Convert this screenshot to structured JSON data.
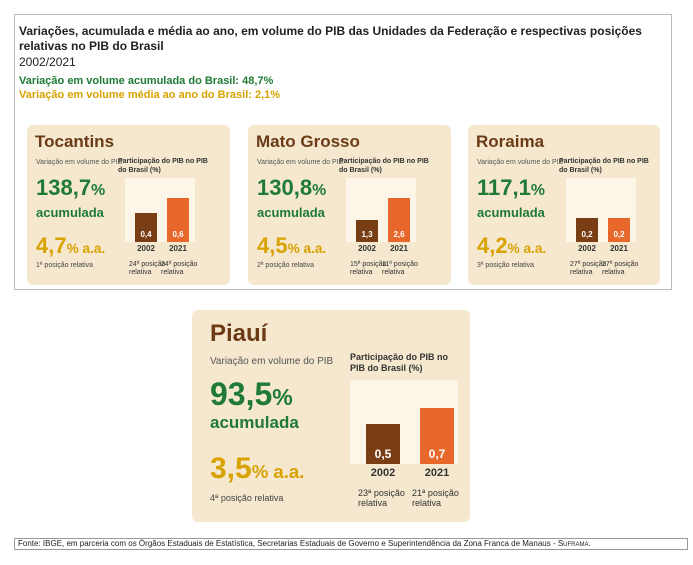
{
  "header": {
    "title": "Variações, acumulada e média ao ano, em volume do PIB das Unidades da Federação e respectivas posições relativas no PIB do Brasil",
    "period": "2002/2021",
    "brasil_accumulated": "Variação em volume acumulada do Brasil: 48,7%",
    "brasil_average": "Variação em volume média ao ano do Brasil: 2,1%"
  },
  "labels": {
    "variation": "Variação em volume do PIB",
    "participation": "Participação do PIB no PIB do Brasil (%)",
    "accumulated": "acumulada",
    "pct": "%",
    "per_year": "% a.a."
  },
  "colors": {
    "green": "#1e7a35",
    "yellow": "#d8a200",
    "bar_2002": "#7a3e14",
    "bar_2021": "#e8672b",
    "card_bg": "#f5e8cf"
  },
  "chart_data": [
    {
      "type": "bar",
      "title": "Tocantins",
      "categories": [
        "2002",
        "2021"
      ],
      "values": [
        0.4,
        0.6
      ],
      "value_labels": [
        "0,4",
        "0,6"
      ],
      "accumulated": "138,7",
      "average": "4,7",
      "rank": "1ª posição relativa",
      "participation_ranks": [
        "24ª posição relativa",
        "24ª posição relativa"
      ]
    },
    {
      "type": "bar",
      "title": "Mato Grosso",
      "categories": [
        "2002",
        "2021"
      ],
      "values": [
        1.3,
        2.6
      ],
      "value_labels": [
        "1,3",
        "2,6"
      ],
      "accumulated": "130,8",
      "average": "4,5",
      "rank": "2ª posição relativa",
      "participation_ranks": [
        "15ª posição relativa",
        "11ª posição relativa"
      ]
    },
    {
      "type": "bar",
      "title": "Roraima",
      "categories": [
        "2002",
        "2021"
      ],
      "values": [
        0.2,
        0.2
      ],
      "value_labels": [
        "0,2",
        "0,2"
      ],
      "accumulated": "117,1",
      "average": "4,2",
      "rank": "3ª posição relativa",
      "participation_ranks": [
        "27ª posição relativa",
        "27ª posição relativa"
      ]
    },
    {
      "type": "bar",
      "title": "Piauí",
      "categories": [
        "2002",
        "2021"
      ],
      "values": [
        0.5,
        0.7
      ],
      "value_labels": [
        "0,5",
        "0,7"
      ],
      "accumulated": "93,5",
      "average": "3,5",
      "rank": "4ª posição relativa",
      "participation_ranks": [
        "23ª posição relativa",
        "21ª posição relativa"
      ]
    }
  ],
  "footer": {
    "source": "Fonte: IBGE, em parceria com os Órgãos Estaduais de Estatística, Secretarias Estaduais de Governo e Superintendência da Zona Franca de Manaus - ",
    "brand": "Suframa."
  }
}
